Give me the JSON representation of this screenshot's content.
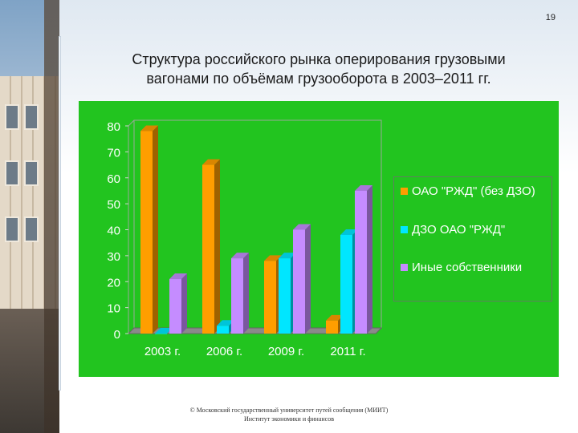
{
  "page_number": "19",
  "title": "Структура российского рынка оперирования грузовыми\nвагонами по объёмам грузооборота в 2003–2011 гг.",
  "footer": {
    "line1": "© Московский государственный университет путей сообщения (МИИТ)",
    "line2": "Институт экономики и финансов"
  },
  "colors": {
    "panel": "#22c41f",
    "series": [
      "#ff9e00",
      "#00e6ff",
      "#c58cff"
    ]
  },
  "chart_data": {
    "type": "bar",
    "title": "",
    "xlabel": "",
    "ylabel": "",
    "ylim": [
      0,
      80
    ],
    "yticks": [
      "0",
      "10",
      "20",
      "30",
      "40",
      "50",
      "60",
      "70",
      "80"
    ],
    "categories": [
      "2003 г.",
      "2006 г.",
      "2009 г.",
      "2011 г."
    ],
    "grid": false,
    "legend_position": "right",
    "series": [
      {
        "name": "ОАО \"РЖД\" (без ДЗО)",
        "values": [
          78,
          65,
          28,
          5
        ]
      },
      {
        "name": "ДЗО ОАО \"РЖД\"",
        "values": [
          0,
          3,
          29,
          38
        ]
      },
      {
        "name": "Иные собственники",
        "values": [
          21,
          29,
          40,
          55
        ]
      }
    ]
  }
}
